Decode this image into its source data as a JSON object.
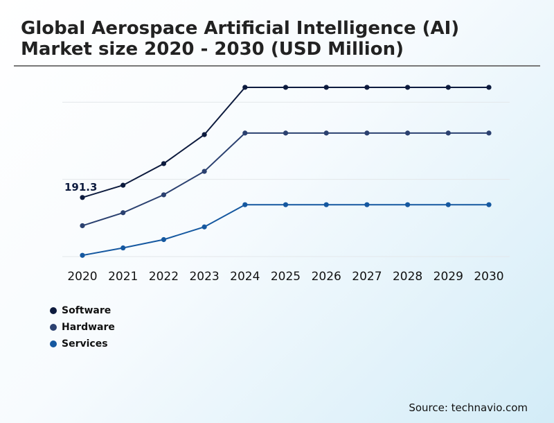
{
  "chart_data": {
    "type": "line",
    "title": "Global Aerospace Artificial Intelligence (AI) Market size 2020 - 2030 (USD Million)",
    "xlabel": "",
    "ylabel": "",
    "categories": [
      "2020",
      "2021",
      "2022",
      "2023",
      "2024",
      "2025",
      "2026",
      "2027",
      "2028",
      "2029",
      "2030"
    ],
    "series": [
      {
        "name": "Software",
        "color": "#0d1b3e",
        "values": [
          191.3,
          231,
          301,
          395,
          548,
          548,
          548,
          548,
          548,
          548,
          548
        ]
      },
      {
        "name": "Hardware",
        "color": "#2b4170",
        "values": [
          100,
          142,
          200,
          276,
          400,
          400,
          400,
          400,
          400,
          400,
          400
        ]
      },
      {
        "name": "Services",
        "color": "#1558a0",
        "values": [
          4,
          28,
          55,
          96,
          168,
          168,
          168,
          168,
          168,
          168,
          168
        ]
      }
    ],
    "annotations": [
      {
        "series": 0,
        "index": 0,
        "text": "191.3"
      }
    ],
    "ylim": [
      0,
      750
    ],
    "grid": true,
    "legend": "bottom-left"
  },
  "source": "Source: technavio.com"
}
